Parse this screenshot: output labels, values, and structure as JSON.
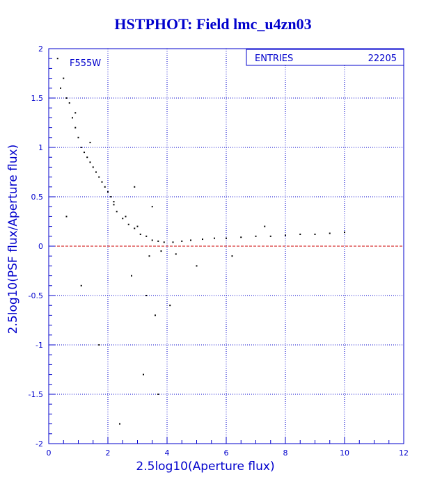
{
  "title": "HSTPHOT: Field lmc_u4zn03",
  "filter_label": "F555W",
  "stats": {
    "label": "ENTRIES",
    "value": "22205"
  },
  "colors": {
    "axis": "#0000cc",
    "grid": "#0000cc",
    "points": "#000000",
    "zero_line": "#cc0000",
    "title": "#0000cc"
  },
  "chart_data": {
    "type": "scatter",
    "title": "HSTPHOT: Field lmc_u4zn03",
    "xlabel": "2.5log10(Aperture flux)",
    "ylabel": "2.5log10(PSF flux/Aperture flux)",
    "xlim": [
      0,
      12
    ],
    "ylim": [
      -2,
      2
    ],
    "xticks": [
      0,
      2,
      4,
      6,
      8,
      10,
      12
    ],
    "yticks": [
      -2,
      -1.5,
      -1,
      -0.5,
      0,
      0.5,
      1,
      1.5,
      2
    ],
    "xtick_labels": [
      "0",
      "2",
      "4",
      "6",
      "8",
      "10",
      "12"
    ],
    "ytick_labels": [
      "-2",
      "-1.5",
      "-1",
      "-0.5",
      "0",
      "0.5",
      "1",
      "1.5",
      "2"
    ],
    "grid": true,
    "entries": 22205,
    "reference_line": {
      "y": 0,
      "style": "dashed"
    },
    "series": [
      {
        "x": [
          0.3,
          0.5,
          0.6,
          0.7,
          0.8,
          0.9,
          1.0,
          1.1,
          1.2,
          1.3,
          1.4,
          1.5,
          1.6,
          1.7,
          1.8,
          1.9,
          2.0,
          2.1,
          2.2,
          2.3,
          2.5,
          2.7,
          2.9,
          3.1,
          3.3,
          3.5,
          3.7,
          3.9,
          4.2,
          4.5,
          4.8,
          5.2,
          5.6,
          6.0,
          6.5,
          7.0,
          7.5,
          8.0,
          8.5,
          9.0,
          9.5,
          10.0,
          0.4,
          0.9,
          1.4,
          2.2,
          2.6,
          3.0,
          3.4,
          3.8,
          4.3,
          2.8,
          3.3,
          3.6,
          4.1,
          5.0,
          6.2,
          7.3,
          0.6,
          1.1,
          1.7,
          3.2,
          3.7,
          2.4,
          2.9,
          3.5
        ],
        "y": [
          1.9,
          1.7,
          1.5,
          1.45,
          1.3,
          1.2,
          1.1,
          1.0,
          0.95,
          0.9,
          0.85,
          0.8,
          0.75,
          0.7,
          0.65,
          0.6,
          0.55,
          0.5,
          0.42,
          0.35,
          0.28,
          0.22,
          0.18,
          0.12,
          0.1,
          0.06,
          0.05,
          0.04,
          0.04,
          0.05,
          0.06,
          0.07,
          0.08,
          0.08,
          0.09,
          0.1,
          0.1,
          0.11,
          0.12,
          0.12,
          0.13,
          0.14,
          1.6,
          1.35,
          1.05,
          0.45,
          0.3,
          0.2,
          -0.1,
          -0.05,
          -0.08,
          -0.3,
          -0.5,
          -0.7,
          -0.6,
          -0.2,
          -0.1,
          0.2,
          0.3,
          -0.4,
          -1.0,
          -1.3,
          -1.5,
          -1.8,
          0.6,
          0.4
        ]
      }
    ]
  }
}
